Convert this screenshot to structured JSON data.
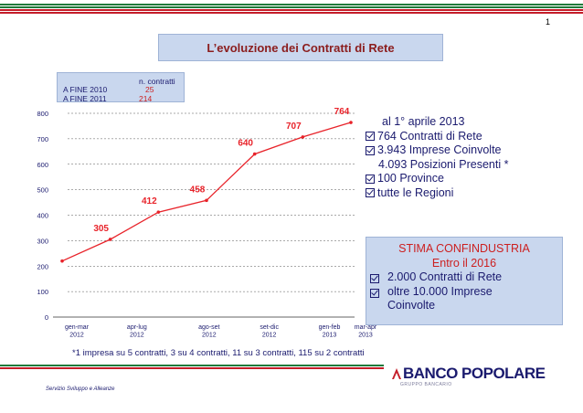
{
  "page_number": "1",
  "title": "L’evoluzione dei Contratti di Rete",
  "info_box": {
    "header": "n. contratti",
    "rows": [
      {
        "label": "A FINE 2010",
        "value": "25"
      },
      {
        "label": "A FINE 2011",
        "value": "214"
      }
    ]
  },
  "stats": {
    "date_line": "al 1° aprile 2013",
    "items": [
      "764 Contratti di Rete",
      "3.943 Imprese Coinvolte",
      "4.093 Posizioni Presenti *",
      "100 Province",
      "tutte le Regioni"
    ],
    "indent_item": "4.093 Posizioni Presenti *"
  },
  "stima": {
    "title": "STIMA CONFINDUSTRIA",
    "subtitle": "Entro il 2016",
    "items": [
      "2.000 Contratti di Rete",
      "oltre 10.000 Imprese Coinvolte"
    ]
  },
  "footnote": "*1 impresa su 5 contratti, 3 su 4 contratti, 11 su 3 contratti, 115 su 2 contratti",
  "footer_left": "Servizio Sviluppo e Alleanze",
  "logo": {
    "text": "BANCO POPOLARE",
    "sub": "GRUPPO BANCARIO"
  },
  "colors": {
    "line": "#e8232a",
    "title_text": "#8b1d1d",
    "text": "#1a1a6e",
    "box": "#c9d7ee"
  },
  "chart_data": {
    "type": "line",
    "x_tick_labels": [
      [
        "gen-mar",
        "2012"
      ],
      [
        "apr-lug",
        "2012"
      ],
      [
        "ago-set",
        "2012"
      ],
      [
        "set-dic",
        "2012"
      ],
      [
        "gen-feb",
        "2013"
      ],
      [
        "mar-apr",
        "2013"
      ]
    ],
    "points": [
      {
        "x": 0,
        "y": 220,
        "label": ""
      },
      {
        "x": 1,
        "y": 305,
        "label": "305"
      },
      {
        "x": 2,
        "y": 412,
        "label": "412"
      },
      {
        "x": 3,
        "y": 458,
        "label": "458"
      },
      {
        "x": 4,
        "y": 640,
        "label": "640"
      },
      {
        "x": 5,
        "y": 707,
        "label": "707"
      },
      {
        "x": 6,
        "y": 764,
        "label": "764"
      }
    ],
    "tick_positions": [
      0,
      1.25,
      2.75,
      4,
      5.25,
      6
    ],
    "ylim": [
      0,
      800
    ],
    "yticks": [
      0,
      100,
      200,
      300,
      400,
      500,
      600,
      700,
      800
    ],
    "grid": "horizontal dashed"
  }
}
